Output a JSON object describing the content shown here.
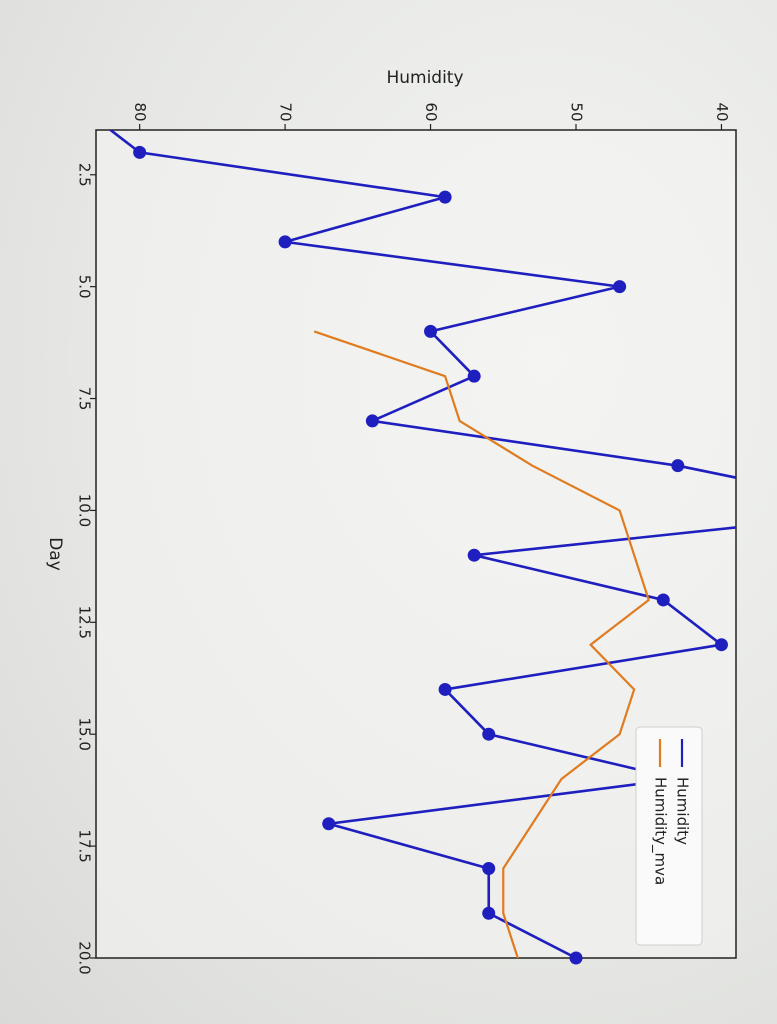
{
  "chart_data": {
    "type": "line",
    "title": "",
    "xlabel": "Day",
    "ylabel": "Humidity",
    "xlim": [
      1.5,
      20.0
    ],
    "ylim": [
      39,
      83
    ],
    "xticks": [
      "2.5",
      "5.0",
      "7.5",
      "10.0",
      "12.5",
      "15.0",
      "17.5",
      "20.0"
    ],
    "yticks": [
      "40",
      "50",
      "60",
      "70",
      "80"
    ],
    "grid": false,
    "legend_position": "top-right",
    "series": [
      {
        "name": "Humidity",
        "color": "#1f1fbf",
        "markers": true,
        "x": [
          1,
          2,
          3,
          4,
          5,
          6,
          7,
          8,
          9,
          10,
          11,
          12,
          13,
          14,
          15,
          16,
          17,
          18,
          19,
          20
        ],
        "y": [
          84,
          80,
          59,
          70,
          47,
          60,
          57,
          64,
          43,
          28,
          57,
          44,
          40,
          59,
          56,
          43,
          67,
          56,
          56,
          50
        ]
      },
      {
        "name": "Humidity_mva",
        "color": "#e07b20",
        "markers": false,
        "x": [
          6,
          7,
          8,
          9,
          10,
          11,
          12,
          13,
          14,
          15,
          16,
          17,
          18,
          19,
          20
        ],
        "y": [
          68,
          59,
          58,
          53,
          47,
          46,
          45,
          49,
          46,
          47,
          51,
          53,
          55,
          55,
          54
        ]
      }
    ]
  }
}
